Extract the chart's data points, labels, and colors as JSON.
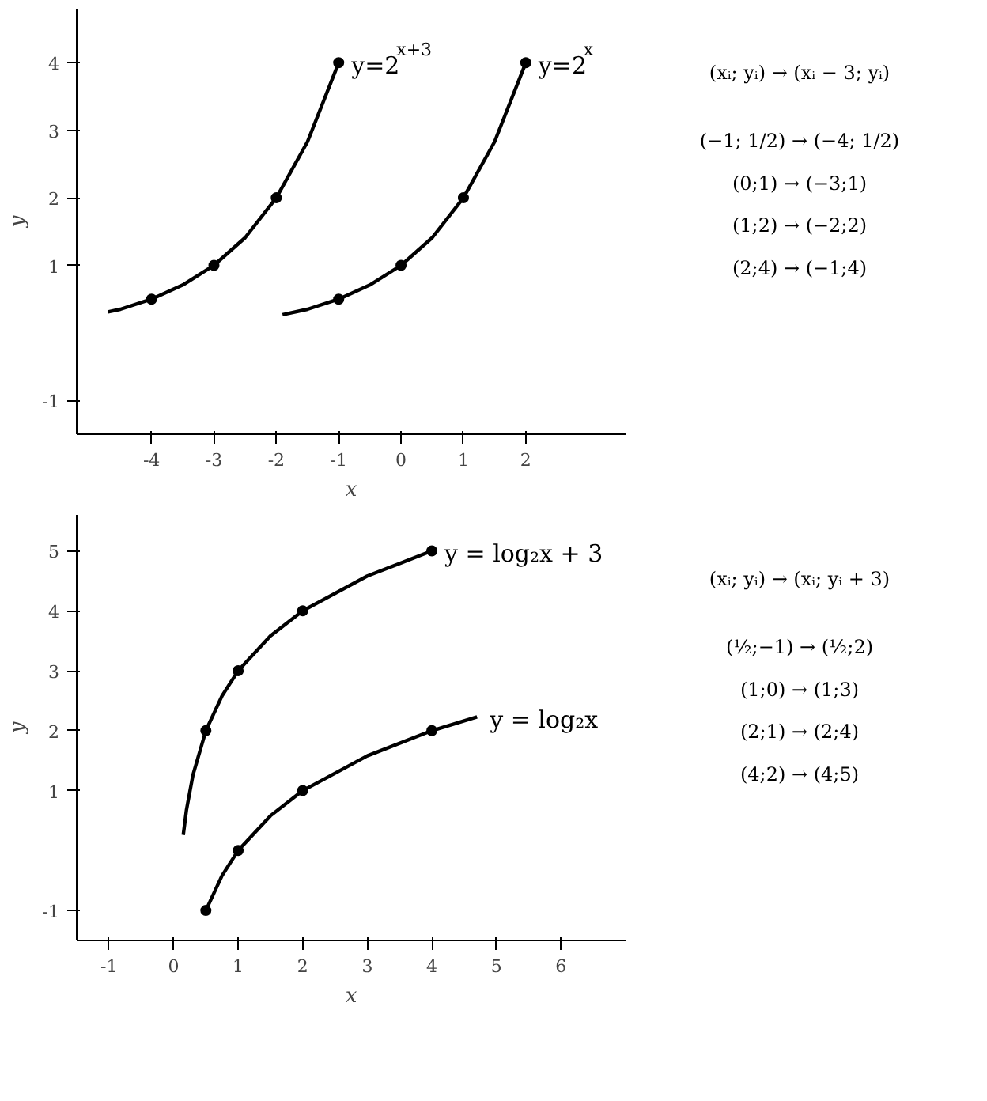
{
  "chart_data": [
    {
      "type": "line",
      "xlabel": "x",
      "ylabel": "y",
      "xlim": [
        -5.2,
        3.6
      ],
      "ylim": [
        -1.5,
        4.8
      ],
      "xticks": [
        -4,
        -3,
        -2,
        -1,
        0,
        1,
        2
      ],
      "yticks": [
        -1,
        1,
        2,
        3,
        4
      ],
      "grid": false,
      "line_style": "solid",
      "series": [
        {
          "name": "y=2$^{x+3}$",
          "color": "#000000",
          "marker": "none",
          "x": [
            -4.7,
            -4.5,
            -4,
            -3.5,
            -3,
            -2.5,
            -2,
            -1.5,
            -1
          ],
          "values": [
            0.31,
            0.35,
            0.5,
            0.71,
            1,
            1.41,
            2,
            2.83,
            4
          ]
        },
        {
          "name": "y=2$^{x}$",
          "color": "#000000",
          "marker": "none",
          "x": [
            -1.9,
            -1.5,
            -1,
            -0.5,
            0,
            0.5,
            1,
            1.5,
            2
          ],
          "values": [
            0.27,
            0.35,
            0.5,
            0.71,
            1,
            1.41,
            2,
            2.83,
            4
          ]
        },
        {
          "type": "scatter",
          "color": "#000000",
          "marker": "circle",
          "x": [
            -4,
            -3,
            -2,
            -1,
            -1,
            0,
            1,
            2
          ],
          "values": [
            0.5,
            1,
            2,
            4,
            0.5,
            1,
            2,
            4
          ]
        }
      ],
      "annotations": [
        "(xᵢ; yᵢ) → (xᵢ − 3; yᵢ)",
        "(−1; 1/2) → (−4; 1/2)",
        "(0;1) → (−3;1)",
        "(1;2) → (−2;2)",
        "(2;4) → (−1;4)"
      ]
    },
    {
      "type": "line",
      "xlabel": "x",
      "ylabel": "y",
      "xlim": [
        -1.5,
        7
      ],
      "ylim": [
        -1.5,
        5.6
      ],
      "xticks": [
        -1,
        0,
        1,
        2,
        3,
        4,
        5,
        6
      ],
      "yticks": [
        -1,
        1,
        2,
        3,
        4,
        5
      ],
      "grid": false,
      "line_style": "solid",
      "series": [
        {
          "name": "y = log₂x + 3",
          "color": "#000000",
          "marker": "none",
          "x": [
            0.15,
            0.2,
            0.3,
            0.5,
            0.75,
            1,
            1.5,
            2,
            3,
            4
          ],
          "values": [
            0.26,
            0.68,
            1.26,
            2,
            2.58,
            3,
            3.58,
            4,
            4.58,
            5
          ]
        },
        {
          "name": "y = log₂x",
          "color": "#000000",
          "marker": "none",
          "x": [
            0.5,
            0.75,
            1,
            1.5,
            2,
            3,
            4,
            4.7
          ],
          "values": [
            -1,
            -0.42,
            0,
            0.58,
            1,
            1.58,
            2,
            2.23
          ]
        },
        {
          "type": "scatter",
          "color": "#000000",
          "marker": "circle",
          "x": [
            0.5,
            1,
            2,
            4,
            0.5,
            1,
            2,
            4
          ],
          "values": [
            2,
            3,
            4,
            5,
            -1,
            0,
            1,
            2
          ]
        }
      ],
      "annotations": [
        "(xᵢ; yᵢ) → (xᵢ; yᵢ + 3)",
        "(½;−1) → (½;2)",
        "(1;0) → (1;3)",
        "(2;1) → (2;4)",
        "(4;2) → (4;5)"
      ]
    }
  ]
}
